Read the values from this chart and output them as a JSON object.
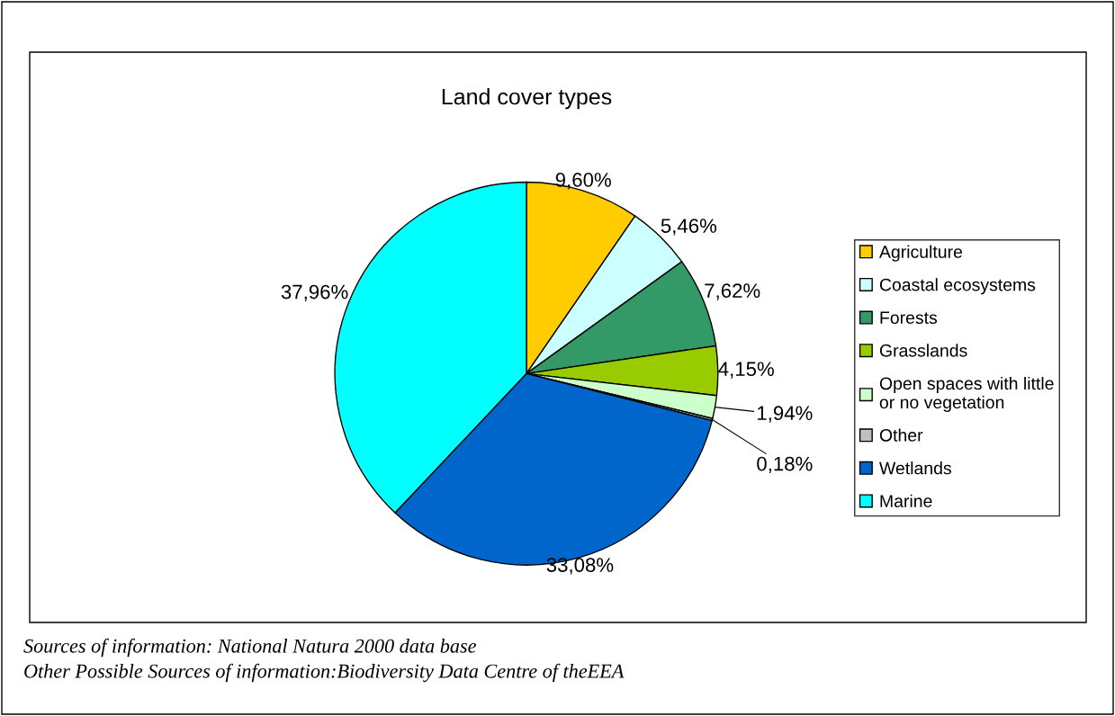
{
  "chart_data": {
    "type": "pie",
    "title": "Land cover types",
    "categories": [
      "Agriculture",
      "Coastal ecosystems",
      "Forests",
      "Grasslands",
      "Open spaces with little\nor no vegetation",
      "Other",
      "Wetlands",
      "Marine"
    ],
    "values": [
      9.6,
      5.46,
      7.62,
      4.15,
      1.94,
      0.18,
      33.08,
      37.96
    ],
    "colors": [
      "#ffcc00",
      "#ccffff",
      "#339966",
      "#99cc00",
      "#ccffcc",
      "#c0c0c0",
      "#0066cc",
      "#00ffff"
    ],
    "value_labels": [
      "9,60%",
      "5,46%",
      "7,62%",
      "4,15%",
      "1,94%",
      "0,18%",
      "33,08%",
      "37,96%"
    ],
    "legend": "right",
    "annotations": [
      "Sources of information: National Natura 2000 data base",
      "Other Possible Sources of information:Biodiversity Data Centre of theEEA"
    ]
  }
}
